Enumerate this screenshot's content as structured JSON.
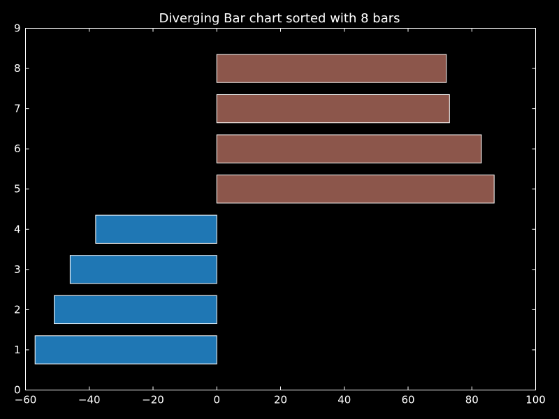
{
  "chart_data": {
    "type": "bar",
    "orientation": "horizontal",
    "title": "Diverging Bar chart sorted with 8 bars",
    "xlabel": "",
    "ylabel": "",
    "xlim": [
      -60,
      100
    ],
    "ylim": [
      0,
      9
    ],
    "xticks": [
      -60,
      -40,
      -20,
      0,
      20,
      40,
      60,
      80,
      100
    ],
    "xtick_labels": [
      "−60",
      "−40",
      "−20",
      "0",
      "20",
      "40",
      "60",
      "80",
      "100"
    ],
    "yticks": [
      0,
      1,
      2,
      3,
      4,
      5,
      6,
      7,
      8,
      9
    ],
    "ytick_labels": [
      "0",
      "1",
      "2",
      "3",
      "4",
      "5",
      "6",
      "7",
      "8",
      "9"
    ],
    "categories": [
      1,
      2,
      3,
      4,
      5,
      6,
      7,
      8
    ],
    "values": [
      -57,
      -51,
      -46,
      -38,
      87,
      83,
      73,
      72
    ],
    "colors": {
      "negative": "#1f77b4",
      "positive": "#8c564b",
      "background": "#000000",
      "foreground": "#ffffff"
    },
    "grid": false,
    "legend": "none"
  }
}
